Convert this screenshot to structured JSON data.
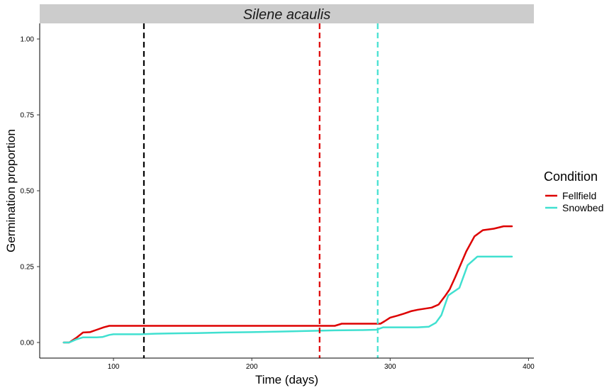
{
  "chart_data": {
    "type": "line",
    "facet_title": "Silene acaulis",
    "xlabel": "Time (days)",
    "ylabel": "Germination proportion",
    "xlim": [
      50,
      400
    ],
    "ylim": [
      0,
      1
    ],
    "x_ticks": [
      100,
      200,
      300,
      400
    ],
    "y_ticks": [
      0.0,
      0.25,
      0.5,
      0.75,
      1.0
    ],
    "x_tick_labels": [
      "100",
      "200",
      "300",
      "400"
    ],
    "y_tick_labels": [
      "0.00",
      "0.25",
      "0.50",
      "0.75",
      "1.00"
    ],
    "grid": false,
    "legend": {
      "title": "Condition",
      "position": "right",
      "entries": [
        "Fellfield",
        "Snowbed"
      ]
    },
    "series": [
      {
        "name": "Fellfield",
        "color": "#dd0000",
        "x": [
          64,
          68,
          73,
          78,
          83,
          88,
          93,
          97,
          100,
          110,
          120,
          140,
          160,
          180,
          200,
          220,
          240,
          255,
          260,
          265,
          270,
          280,
          290,
          293,
          296,
          300,
          305,
          310,
          315,
          320,
          330,
          335,
          340,
          343,
          347,
          355,
          361,
          367,
          375,
          382,
          388
        ],
        "y": [
          0.0,
          0.0,
          0.015,
          0.033,
          0.034,
          0.042,
          0.05,
          0.055,
          0.055,
          0.055,
          0.055,
          0.055,
          0.055,
          0.055,
          0.055,
          0.055,
          0.055,
          0.055,
          0.055,
          0.062,
          0.062,
          0.062,
          0.062,
          0.062,
          0.07,
          0.082,
          0.088,
          0.095,
          0.103,
          0.108,
          0.115,
          0.125,
          0.155,
          0.175,
          0.215,
          0.3,
          0.35,
          0.37,
          0.375,
          0.383,
          0.383
        ]
      },
      {
        "name": "Snowbed",
        "color": "#40e0d0",
        "x": [
          64,
          68,
          73,
          78,
          83,
          88,
          92,
          97,
          100,
          110,
          120,
          130,
          140,
          160,
          180,
          200,
          220,
          240,
          260,
          280,
          290,
          295,
          300,
          310,
          320,
          328,
          333,
          337,
          342,
          350,
          356,
          363,
          370,
          380,
          388
        ],
        "y": [
          0.0,
          0.0,
          0.01,
          0.017,
          0.017,
          0.017,
          0.018,
          0.025,
          0.027,
          0.027,
          0.027,
          0.029,
          0.03,
          0.031,
          0.033,
          0.034,
          0.036,
          0.038,
          0.04,
          0.041,
          0.042,
          0.05,
          0.05,
          0.05,
          0.05,
          0.052,
          0.065,
          0.09,
          0.155,
          0.18,
          0.255,
          0.283,
          0.283,
          0.283,
          0.283
        ]
      }
    ],
    "reference_lines": [
      {
        "x": 122,
        "color": "#000000",
        "style": "dashed"
      },
      {
        "x": 249,
        "color": "#dd0000",
        "style": "dashed"
      },
      {
        "x": 291,
        "color": "#40e0d0",
        "style": "dashed"
      }
    ]
  }
}
